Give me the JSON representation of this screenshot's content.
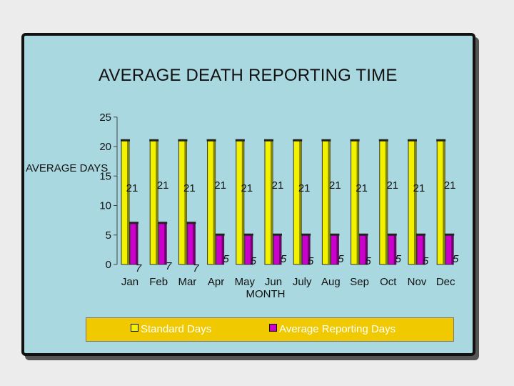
{
  "chart_data": {
    "type": "bar",
    "title": "AVERAGE DEATH REPORTING TIME",
    "xlabel": "MONTH",
    "ylabel": "AVERAGE DAYS",
    "categories": [
      "Jan",
      "Feb",
      "Mar",
      "Apr",
      "May",
      "Jun",
      "July",
      "Aug",
      "Sep",
      "Oct",
      "Nov",
      "Dec"
    ],
    "series": [
      {
        "name": "Standard Days",
        "color": "#f2f200",
        "values": [
          21,
          21,
          21,
          21,
          21,
          21,
          21,
          21,
          21,
          21,
          21,
          21
        ]
      },
      {
        "name": "Average Reporting Days",
        "color": "#cc00cc",
        "values": [
          7,
          7,
          7,
          5,
          5,
          5,
          5,
          5,
          5,
          5,
          5,
          5
        ]
      }
    ],
    "yticks": [
      0,
      5,
      10,
      15,
      20,
      25
    ],
    "ylim": [
      0,
      25
    ],
    "grid": false,
    "legend_position": "bottom"
  }
}
